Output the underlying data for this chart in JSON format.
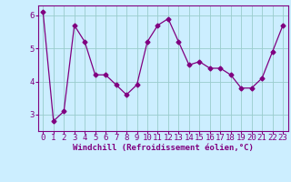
{
  "x": [
    0,
    1,
    2,
    3,
    4,
    5,
    6,
    7,
    8,
    9,
    10,
    11,
    12,
    13,
    14,
    15,
    16,
    17,
    18,
    19,
    20,
    21,
    22,
    23
  ],
  "y": [
    6.1,
    2.8,
    3.1,
    5.7,
    5.2,
    4.2,
    4.2,
    3.9,
    3.6,
    3.9,
    5.2,
    5.7,
    5.9,
    5.2,
    4.5,
    4.6,
    4.4,
    4.4,
    4.2,
    3.8,
    3.8,
    4.1,
    4.9,
    5.7
  ],
  "line_color": "#800080",
  "marker": "D",
  "marker_size": 2.5,
  "bg_color": "#cceeff",
  "grid_color": "#99cccc",
  "xlabel": "Windchill (Refroidissement éolien,°C)",
  "yticks": [
    3,
    4,
    5,
    6
  ],
  "ylim": [
    2.5,
    6.3
  ],
  "xlim": [
    -0.5,
    23.5
  ],
  "xticks": [
    0,
    1,
    2,
    3,
    4,
    5,
    6,
    7,
    8,
    9,
    10,
    11,
    12,
    13,
    14,
    15,
    16,
    17,
    18,
    19,
    20,
    21,
    22,
    23
  ],
  "xlabel_fontsize": 6.5,
  "tick_fontsize": 6.5,
  "axis_color": "#800080"
}
